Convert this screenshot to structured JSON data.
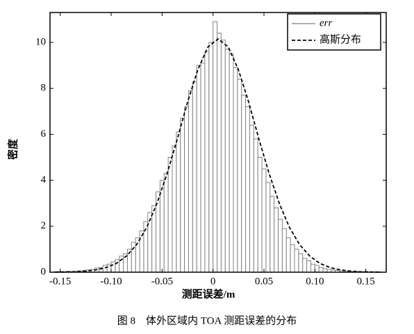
{
  "chart_data": {
    "type": "histogram",
    "xlabel": "测距误差/m",
    "ylabel": "密度",
    "bins": [
      -0.16,
      -0.156,
      -0.152,
      -0.148,
      -0.144,
      -0.14,
      -0.136,
      -0.132,
      -0.128,
      -0.124,
      -0.12,
      -0.116,
      -0.112,
      -0.108,
      -0.104,
      -0.1,
      -0.096,
      -0.092,
      -0.088,
      -0.084,
      -0.08,
      -0.076,
      -0.072,
      -0.068,
      -0.064,
      -0.06,
      -0.056,
      -0.052,
      -0.048,
      -0.044,
      -0.04,
      -0.036,
      -0.032,
      -0.028,
      -0.024,
      -0.02,
      -0.016,
      -0.012,
      -0.008,
      -0.004,
      0,
      0.004,
      0.008,
      0.012,
      0.016,
      0.02,
      0.024,
      0.028,
      0.032,
      0.036,
      0.04,
      0.044,
      0.048,
      0.052,
      0.056,
      0.06,
      0.064,
      0.068,
      0.072,
      0.076,
      0.08,
      0.084,
      0.088,
      0.092,
      0.096,
      0.1,
      0.104,
      0.108,
      0.112,
      0.116,
      0.12,
      0.124,
      0.128,
      0.132,
      0.136,
      0.14,
      0.144,
      0.148,
      0.152,
      0.156,
      0.16,
      0.164,
      0.168
    ],
    "series": [
      {
        "name": "err",
        "type": "histogram",
        "color": "#808080",
        "values": [
          0,
          0.02,
          0.03,
          0.02,
          0.04,
          0.03,
          0.05,
          0.06,
          0.08,
          0.1,
          0.12,
          0.18,
          0.2,
          0.3,
          0.35,
          0.45,
          0.55,
          0.7,
          0.8,
          1.0,
          1.3,
          1.5,
          1.8,
          2.2,
          2.6,
          2.9,
          3.5,
          4.0,
          4.3,
          5.0,
          5.5,
          6.1,
          6.7,
          7.2,
          7.9,
          8.3,
          9.0,
          9.1,
          9.6,
          10.0,
          10.9,
          10.4,
          10.1,
          9.7,
          9.5,
          8.9,
          8.4,
          7.7,
          7.2,
          6.4,
          5.8,
          5.0,
          4.5,
          3.9,
          3.3,
          2.8,
          2.3,
          1.9,
          1.5,
          1.2,
          1.0,
          0.8,
          0.6,
          0.5,
          0.35,
          0.3,
          0.2,
          0.15,
          0.12,
          0.1,
          0.08,
          0.06,
          0.05,
          0.04,
          0.03,
          0.03,
          0.02,
          0.02,
          0.01,
          0.01,
          0.01,
          0
        ]
      },
      {
        "name": "高斯分布",
        "type": "line",
        "color": "#000000",
        "dashed": true,
        "x": [
          -0.155,
          -0.145,
          -0.135,
          -0.125,
          -0.115,
          -0.105,
          -0.095,
          -0.085,
          -0.075,
          -0.065,
          -0.055,
          -0.045,
          -0.035,
          -0.025,
          -0.015,
          -0.005,
          0.005,
          0.015,
          0.025,
          0.035,
          0.045,
          0.055,
          0.065,
          0.075,
          0.085,
          0.095,
          0.105,
          0.115,
          0.125,
          0.135,
          0.145,
          0.155,
          0.165
        ],
        "values": [
          0.005,
          0.01,
          0.02,
          0.05,
          0.1,
          0.2,
          0.38,
          0.7,
          1.2,
          1.95,
          3.0,
          4.3,
          5.8,
          7.4,
          8.8,
          9.8,
          10.15,
          9.8,
          8.8,
          7.4,
          5.8,
          4.3,
          3.0,
          1.95,
          1.2,
          0.7,
          0.38,
          0.2,
          0.1,
          0.05,
          0.02,
          0.01,
          0.005
        ]
      }
    ],
    "xlim": [
      -0.16,
      0.17
    ],
    "ylim": [
      0,
      11.3
    ],
    "xticks": [
      -0.15,
      {
        "value": -0.1,
        "label": "-0.10"
      },
      -0.05,
      0,
      0.05,
      {
        "value": 0.1,
        "label": "0.10"
      },
      0.15
    ],
    "yticks": [
      0,
      2,
      4,
      6,
      8,
      10
    ],
    "grid": false,
    "legend": "upper right"
  },
  "caption": "图 8　体外区域内 TOA 测距误差的分布"
}
